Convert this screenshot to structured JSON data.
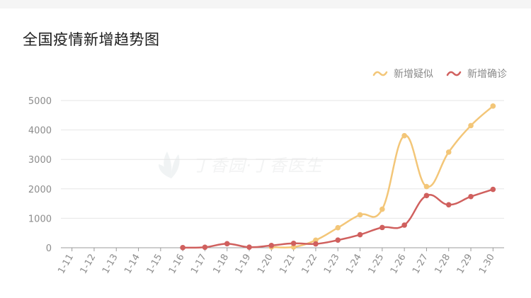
{
  "title": "全国疫情新增趋势图",
  "watermark": "丁香园·丁香医生",
  "colors": {
    "suspected": "#f3c678",
    "confirmed": "#d0605e",
    "grid": "#e6e6e6",
    "axis": "#9b9b9b",
    "label": "#8c8c8c"
  },
  "chart_data": {
    "type": "line",
    "categories": [
      "1-11",
      "1-12",
      "1-13",
      "1-14",
      "1-15",
      "1-16",
      "1-17",
      "1-18",
      "1-19",
      "1-20",
      "1-21",
      "1-22",
      "1-23",
      "1-24",
      "1-25",
      "1-26",
      "1-27",
      "1-28",
      "1-29",
      "1-30"
    ],
    "yticks": [
      0,
      1000,
      2000,
      3000,
      4000,
      5000
    ],
    "ylim": [
      0,
      5000
    ],
    "legend_position": "top-right",
    "grid": true,
    "series": [
      {
        "name": "新增疑似",
        "key": "suspected",
        "values": [
          null,
          null,
          null,
          null,
          null,
          null,
          null,
          null,
          null,
          27,
          26,
          257,
          680,
          1118,
          1309,
          3806,
          2077,
          3248,
          4148,
          4812
        ]
      },
      {
        "name": "新增确诊",
        "key": "confirmed",
        "values": [
          null,
          null,
          null,
          null,
          null,
          4,
          17,
          136,
          19,
          77,
          149,
          131,
          259,
          444,
          688,
          769,
          1771,
          1459,
          1737,
          1982
        ]
      }
    ]
  }
}
